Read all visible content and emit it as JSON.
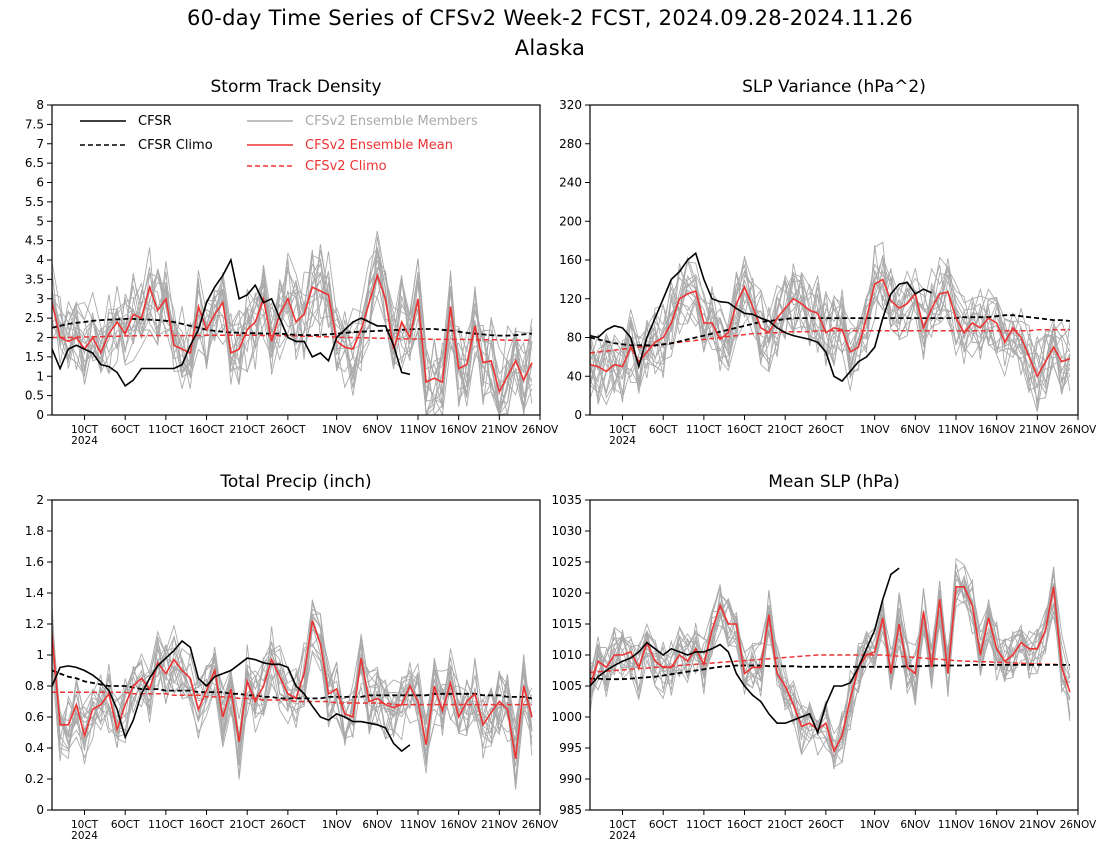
{
  "figure": {
    "title": "60-day Time Series of CFSv2 Week-2 FCST, 2024.09.28-2024.11.26",
    "subtitle": "Alaska"
  },
  "colors": {
    "cfsr": "#000000",
    "members": "#aaaaaa",
    "ens_mean": "#ee3333",
    "climo_cfsv2": "#ee3333"
  },
  "legend": {
    "cfsr": "CFSR",
    "cfsr_climo": "CFSR Climo",
    "members": "CFSv2 Ensemble Members",
    "ens_mean": "CFSv2 Ensemble Mean",
    "cfsv2_climo": "CFSv2 Climo"
  },
  "x_axis": {
    "days": 60,
    "tick_labels": [
      "10CT",
      "6OCT",
      "11OCT",
      "16OCT",
      "21OCT",
      "26OCT",
      "1NOV",
      "6NOV",
      "11NOV",
      "16NOV",
      "21NOV",
      "26NOV"
    ],
    "tick_day_index": [
      4,
      9,
      14,
      19,
      24,
      29,
      35,
      40,
      45,
      50,
      55,
      60
    ],
    "year_label": "2024"
  },
  "chart_data": [
    {
      "type": "line",
      "title": "Storm Track Density",
      "ylim": [
        0,
        8
      ],
      "yticks": [
        "0",
        "0.5",
        "1",
        "1.5",
        "2",
        "2.5",
        "3",
        "3.5",
        "4",
        "4.5",
        "5",
        "5.5",
        "6",
        "6.5",
        "7",
        "7.5",
        "8"
      ],
      "legend": "top-left",
      "series": [
        {
          "name": "CFSR",
          "values": [
            1.7,
            1.2,
            1.7,
            1.8,
            1.7,
            1.6,
            1.3,
            1.25,
            1.1,
            0.75,
            0.9,
            1.2,
            1.2,
            1.2,
            1.2,
            1.2,
            1.3,
            1.8,
            2.2,
            2.9,
            3.3,
            3.6,
            4.0,
            3.0,
            3.1,
            3.35,
            2.9,
            3.0,
            2.5,
            2.0,
            1.9,
            1.9,
            1.5,
            1.6,
            1.4,
            2.0,
            2.2,
            2.4,
            2.5,
            2.4,
            2.3,
            2.3,
            1.8,
            1.1,
            1.05
          ]
        },
        {
          "name": "CFSR Climo",
          "values": [
            2.25,
            2.3,
            2.35,
            2.38,
            2.4,
            2.43,
            2.45,
            2.46,
            2.47,
            2.48,
            2.48,
            2.47,
            2.46,
            2.45,
            2.43,
            2.4,
            2.35,
            2.3,
            2.25,
            2.2,
            2.17,
            2.15,
            2.13,
            2.12,
            2.11,
            2.11,
            2.1,
            2.1,
            2.1,
            2.08,
            2.07,
            2.06,
            2.06,
            2.07,
            2.08,
            2.1,
            2.12,
            2.14,
            2.15,
            2.16,
            2.17,
            2.18,
            2.19,
            2.2,
            2.21,
            2.22,
            2.22,
            2.22,
            2.2,
            2.18,
            2.15,
            2.12,
            2.1,
            2.08,
            2.06,
            2.05,
            2.05,
            2.06,
            2.08,
            2.1
          ]
        },
        {
          "name": "CFSv2 Ensemble Mean",
          "values": [
            2.9,
            2.0,
            1.9,
            2.0,
            1.7,
            2.0,
            1.6,
            2.1,
            2.4,
            2.1,
            2.6,
            2.5,
            3.3,
            2.7,
            3.0,
            1.8,
            1.7,
            1.6,
            2.8,
            2.2,
            2.6,
            2.9,
            1.6,
            1.7,
            2.2,
            2.4,
            3.0,
            1.9,
            2.6,
            3.0,
            2.4,
            2.6,
            3.3,
            3.2,
            3.1,
            1.9,
            1.75,
            1.7,
            2.2,
            2.9,
            3.6,
            3.0,
            1.7,
            2.4,
            2.0,
            3.0,
            0.85,
            0.95,
            0.85,
            2.8,
            1.2,
            1.3,
            2.3,
            1.35,
            1.4,
            0.6,
            1.0,
            1.4,
            0.9,
            1.35
          ]
        },
        {
          "name": "CFSv2 Climo",
          "values": [
            2.0,
            2.0,
            2.0,
            2.01,
            2.01,
            2.02,
            2.02,
            2.03,
            2.03,
            2.04,
            2.04,
            2.05,
            2.05,
            2.05,
            2.05,
            2.05,
            2.05,
            2.05,
            2.05,
            2.06,
            2.06,
            2.06,
            2.06,
            2.06,
            2.06,
            2.06,
            2.05,
            2.05,
            2.05,
            2.04,
            2.04,
            2.03,
            2.03,
            2.02,
            2.02,
            2.01,
            2.0,
            2.0,
            1.99,
            1.99,
            1.98,
            1.98,
            1.97,
            1.97,
            1.96,
            1.96,
            1.96,
            1.95,
            1.95,
            1.95,
            1.95,
            1.95,
            1.94,
            1.94,
            1.94,
            1.94,
            1.93,
            1.93,
            1.93,
            1.93
          ]
        }
      ]
    },
    {
      "type": "line",
      "title": "SLP Variance (hPa^2)",
      "ylim": [
        0,
        320
      ],
      "yticks": [
        "0",
        "40",
        "80",
        "120",
        "160",
        "200",
        "240",
        "280",
        "320"
      ],
      "series": [
        {
          "name": "CFSR",
          "values": [
            82,
            80,
            88,
            92,
            90,
            80,
            50,
            80,
            100,
            120,
            140,
            148,
            160,
            167,
            140,
            120,
            117,
            116,
            110,
            105,
            104,
            100,
            97,
            90,
            85,
            82,
            80,
            78,
            75,
            65,
            40,
            35,
            45,
            55,
            60,
            70,
            100,
            125,
            135,
            137,
            125,
            130,
            126
          ]
        },
        {
          "name": "CFSR Climo",
          "values": [
            80,
            78,
            76,
            74,
            73,
            72,
            72,
            72,
            72,
            73,
            74,
            76,
            78,
            80,
            82,
            84,
            86,
            88,
            90,
            92,
            94,
            96,
            97,
            98,
            99,
            100,
            100,
            100,
            100,
            100,
            100,
            100,
            100,
            100,
            100,
            100,
            100,
            100,
            100,
            100,
            100,
            100,
            100,
            100,
            100,
            100,
            101,
            101,
            101,
            101,
            102,
            103,
            103,
            102,
            101,
            100,
            99,
            98,
            98,
            97
          ]
        },
        {
          "name": "CFSv2 Ensemble Mean",
          "values": [
            52,
            50,
            45,
            52,
            50,
            70,
            55,
            65,
            75,
            80,
            95,
            120,
            125,
            128,
            95,
            95,
            78,
            85,
            115,
            132,
            112,
            90,
            85,
            100,
            110,
            120,
            115,
            108,
            105,
            85,
            90,
            88,
            65,
            70,
            100,
            135,
            140,
            118,
            110,
            115,
            125,
            90,
            110,
            125,
            127,
            100,
            85,
            95,
            90,
            100,
            95,
            75,
            90,
            80,
            60,
            40,
            55,
            70,
            55,
            58
          ]
        },
        {
          "name": "CFSv2 Climo",
          "values": [
            64,
            65,
            66,
            67,
            68,
            69,
            70,
            71,
            72,
            73,
            74,
            75,
            76,
            77,
            78,
            79,
            80,
            81,
            82,
            83,
            84,
            84,
            85,
            85,
            86,
            86,
            86,
            86,
            87,
            87,
            87,
            87,
            87,
            87,
            87,
            87,
            87,
            87,
            87,
            87,
            87,
            87,
            87,
            87,
            87,
            87,
            87,
            87,
            87,
            87,
            87,
            87,
            87,
            87,
            87,
            88,
            88,
            88,
            88,
            88
          ]
        }
      ]
    },
    {
      "type": "line",
      "title": "Total Precip (inch)",
      "ylim": [
        0,
        2
      ],
      "yticks": [
        "0",
        "0.2",
        "0.4",
        "0.6",
        "0.8",
        "1",
        "1.2",
        "1.4",
        "1.6",
        "1.8",
        "2"
      ],
      "series": [
        {
          "name": "CFSR",
          "values": [
            0.8,
            0.92,
            0.93,
            0.92,
            0.9,
            0.87,
            0.83,
            0.77,
            0.65,
            0.47,
            0.58,
            0.75,
            0.85,
            0.93,
            0.98,
            1.03,
            1.09,
            1.05,
            0.85,
            0.8,
            0.86,
            0.88,
            0.9,
            0.94,
            0.98,
            0.97,
            0.95,
            0.94,
            0.94,
            0.92,
            0.8,
            0.75,
            0.67,
            0.6,
            0.58,
            0.62,
            0.6,
            0.57,
            0.57,
            0.56,
            0.55,
            0.53,
            0.43,
            0.38,
            0.42
          ]
        },
        {
          "name": "CFSR Climo",
          "values": [
            0.9,
            0.88,
            0.86,
            0.85,
            0.83,
            0.82,
            0.81,
            0.8,
            0.8,
            0.8,
            0.79,
            0.78,
            0.78,
            0.78,
            0.77,
            0.77,
            0.77,
            0.77,
            0.76,
            0.76,
            0.76,
            0.76,
            0.75,
            0.75,
            0.74,
            0.74,
            0.73,
            0.73,
            0.72,
            0.72,
            0.72,
            0.72,
            0.72,
            0.72,
            0.73,
            0.73,
            0.73,
            0.73,
            0.73,
            0.74,
            0.74,
            0.74,
            0.74,
            0.74,
            0.74,
            0.74,
            0.74,
            0.75,
            0.75,
            0.75,
            0.75,
            0.75,
            0.75,
            0.74,
            0.74,
            0.74,
            0.73,
            0.73,
            0.73,
            0.72
          ]
        },
        {
          "name": "CFSv2 Ensemble Mean",
          "values": [
            1.13,
            0.55,
            0.55,
            0.68,
            0.48,
            0.65,
            0.68,
            0.75,
            0.52,
            0.68,
            0.8,
            0.85,
            0.78,
            0.95,
            0.88,
            0.97,
            0.9,
            0.85,
            0.65,
            0.77,
            0.9,
            0.6,
            0.78,
            0.44,
            0.83,
            0.7,
            0.8,
            0.97,
            0.86,
            0.75,
            0.72,
            0.88,
            1.22,
            1.07,
            0.75,
            0.78,
            0.62,
            0.6,
            0.98,
            0.7,
            0.72,
            0.68,
            0.66,
            0.68,
            0.8,
            0.7,
            0.42,
            0.8,
            0.64,
            0.82,
            0.6,
            0.7,
            0.75,
            0.55,
            0.63,
            0.7,
            0.65,
            0.33,
            0.8,
            0.6
          ]
        },
        {
          "name": "CFSv2 Climo",
          "values": [
            0.76,
            0.76,
            0.76,
            0.76,
            0.76,
            0.76,
            0.76,
            0.76,
            0.76,
            0.76,
            0.75,
            0.75,
            0.75,
            0.75,
            0.75,
            0.74,
            0.74,
            0.74,
            0.74,
            0.73,
            0.73,
            0.73,
            0.73,
            0.72,
            0.72,
            0.72,
            0.71,
            0.71,
            0.71,
            0.71,
            0.7,
            0.7,
            0.7,
            0.7,
            0.7,
            0.69,
            0.69,
            0.69,
            0.69,
            0.69,
            0.69,
            0.69,
            0.68,
            0.68,
            0.68,
            0.68,
            0.68,
            0.68,
            0.68,
            0.68,
            0.68,
            0.68,
            0.68,
            0.68,
            0.68,
            0.68,
            0.68,
            0.68,
            0.68,
            0.68
          ]
        }
      ]
    },
    {
      "type": "line",
      "title": "Mean SLP (hPa)",
      "ylim": [
        985,
        1035
      ],
      "yticks": [
        "985",
        "990",
        "995",
        "1000",
        "1005",
        "1010",
        "1015",
        "1020",
        "1025",
        "1030",
        "1035"
      ],
      "series": [
        {
          "name": "CFSR",
          "values": [
            1005,
            1006.5,
            1007.5,
            1008.3,
            1009,
            1009.5,
            1010.5,
            1012,
            1011,
            1010,
            1011,
            1010.5,
            1010,
            1010.5,
            1010.5,
            1011,
            1011.7,
            1010.5,
            1007,
            1005,
            1003.5,
            1002.5,
            1000.5,
            999,
            999,
            999.5,
            1000,
            1000.5,
            997.5,
            1002,
            1005,
            1005,
            1005.5,
            1008,
            1011,
            1014,
            1019,
            1023,
            1024
          ]
        },
        {
          "name": "CFSR Climo",
          "values": [
            1006.2,
            1006.2,
            1006.1,
            1006.1,
            1006.1,
            1006.2,
            1006.3,
            1006.4,
            1006.5,
            1006.7,
            1006.9,
            1007.1,
            1007.3,
            1007.5,
            1007.7,
            1007.9,
            1008.1,
            1008.2,
            1008.3,
            1008.3,
            1008.3,
            1008.3,
            1008.2,
            1008.2,
            1008.2,
            1008.2,
            1008.1,
            1008.1,
            1008.1,
            1008.1,
            1008.1,
            1008.1,
            1008.1,
            1008.1,
            1008.1,
            1008.1,
            1008.1,
            1008.1,
            1008.1,
            1008.2,
            1008.2,
            1008.2,
            1008.3,
            1008.3,
            1008.3,
            1008.3,
            1008.3,
            1008.4,
            1008.4,
            1008.4,
            1008.4,
            1008.4,
            1008.4,
            1008.4,
            1008.4,
            1008.4,
            1008.4,
            1008.4,
            1008.4,
            1008.4
          ]
        },
        {
          "name": "CFSv2 Ensemble Mean",
          "values": [
            1005,
            1009,
            1008,
            1010,
            1010,
            1010.5,
            1008,
            1012,
            1009,
            1008,
            1008,
            1010,
            1009,
            1011,
            1008.5,
            1014,
            1018,
            1015,
            1015,
            1007,
            1008,
            1008,
            1016.5,
            1007,
            1005,
            1002,
            998.5,
            999,
            998,
            999,
            994.5,
            997,
            1003,
            1008,
            1010,
            1010.5,
            1016,
            1007,
            1015,
            1008,
            1007,
            1017,
            1008,
            1019,
            1007,
            1021,
            1021,
            1018,
            1010,
            1016,
            1011,
            1009,
            1010,
            1012,
            1011,
            1011,
            1014,
            1021,
            1008,
            1004
          ]
        },
        {
          "name": "CFSv2 Climo",
          "values": [
            1007.2,
            1007.3,
            1007.4,
            1007.5,
            1007.6,
            1007.7,
            1007.8,
            1007.9,
            1008.0,
            1008.1,
            1008.2,
            1008.3,
            1008.4,
            1008.5,
            1008.6,
            1008.7,
            1008.8,
            1008.9,
            1009.0,
            1009.1,
            1009.2,
            1009.3,
            1009.4,
            1009.5,
            1009.6,
            1009.7,
            1009.8,
            1009.9,
            1010.0,
            1010.0,
            1010.0,
            1010.0,
            1010.0,
            1010.0,
            1010.0,
            1010.0,
            1010.0,
            1009.9,
            1009.8,
            1009.7,
            1009.6,
            1009.5,
            1009.4,
            1009.3,
            1009.2,
            1009.1,
            1009.0,
            1009.0,
            1008.9,
            1008.9,
            1008.8,
            1008.8,
            1008.7,
            1008.7,
            1008.6,
            1008.6,
            1008.5,
            1008.5,
            1008.4,
            1008.4
          ]
        }
      ]
    }
  ]
}
